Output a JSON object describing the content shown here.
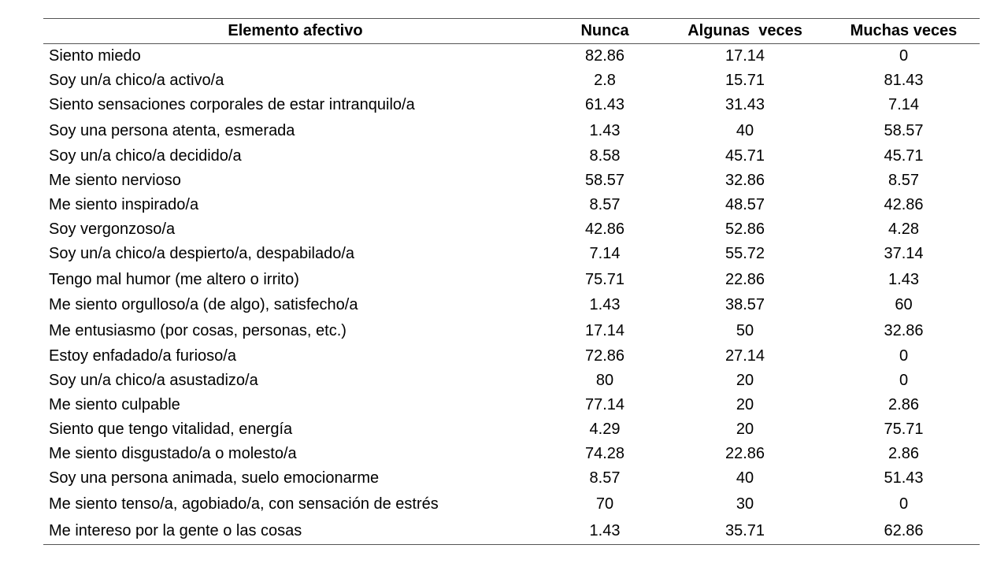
{
  "table": {
    "headers": [
      "Elemento afectivo",
      "Nunca",
      "Algunas  veces",
      "Muchas veces"
    ],
    "rows": [
      [
        "Siento miedo",
        "82.86",
        "17.14",
        "0"
      ],
      [
        "Soy un/a chico/a activo/a",
        "2.8",
        "15.71",
        "81.43"
      ],
      [
        "Siento sensaciones corporales de estar intranquilo/a",
        "61.43",
        "31.43",
        "7.14"
      ],
      [
        "Soy una persona atenta, esmerada",
        "1.43",
        "40",
        "58.57"
      ],
      [
        "Soy un/a chico/a decidido/a",
        "8.58",
        "45.71",
        "45.71"
      ],
      [
        "Me siento nervioso",
        "58.57",
        "32.86",
        "8.57"
      ],
      [
        "Me siento inspirado/a",
        "8.57",
        "48.57",
        "42.86"
      ],
      [
        "Soy vergonzoso/a",
        "42.86",
        "52.86",
        "4.28"
      ],
      [
        "Soy un/a chico/a despierto/a, despabilado/a",
        "7.14",
        "55.72",
        "37.14"
      ],
      [
        "Tengo mal humor (me altero o irrito)",
        "75.71",
        "22.86",
        "1.43"
      ],
      [
        "Me siento orgulloso/a (de algo), satisfecho/a",
        "1.43",
        "38.57",
        "60"
      ],
      [
        "Me entusiasmo (por cosas, personas, etc.)",
        "17.14",
        "50",
        "32.86"
      ],
      [
        "Estoy enfadado/a furioso/a",
        "72.86",
        "27.14",
        "0"
      ],
      [
        "Soy un/a chico/a asustadizo/a",
        "80",
        "20",
        "0"
      ],
      [
        "Me siento culpable",
        "77.14",
        "20",
        "2.86"
      ],
      [
        "Siento que tengo vitalidad, energía",
        "4.29",
        "20",
        "75.71"
      ],
      [
        "Me siento disgustado/a o molesto/a",
        "74.28",
        "22.86",
        "2.86"
      ],
      [
        "Soy una persona animada, suelo emocionarme",
        "8.57",
        "40",
        "51.43"
      ],
      [
        "Me siento tenso/a, agobiado/a, con sensación de estrés",
        "70",
        "30",
        "0"
      ],
      [
        "Me intereso por la gente o las cosas",
        "1.43",
        "35.71",
        "62.86"
      ]
    ]
  }
}
